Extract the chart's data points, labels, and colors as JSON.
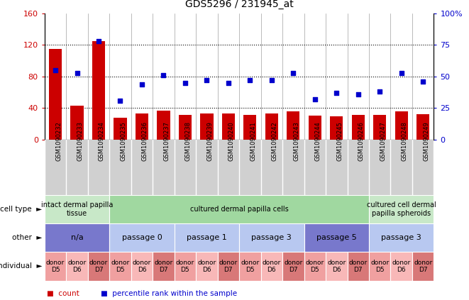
{
  "title": "GDS5296 / 231945_at",
  "samples": [
    "GSM1090232",
    "GSM1090233",
    "GSM1090234",
    "GSM1090235",
    "GSM1090236",
    "GSM1090237",
    "GSM1090238",
    "GSM1090239",
    "GSM1090240",
    "GSM1090241",
    "GSM1090242",
    "GSM1090243",
    "GSM1090244",
    "GSM1090245",
    "GSM1090246",
    "GSM1090247",
    "GSM1090248",
    "GSM1090249"
  ],
  "count_values": [
    115,
    43,
    125,
    28,
    33,
    37,
    31,
    33,
    33,
    31,
    33,
    36,
    30,
    29,
    31,
    31,
    36,
    32
  ],
  "percentile_values": [
    55,
    53,
    78,
    31,
    44,
    51,
    45,
    47,
    45,
    47,
    47,
    53,
    32,
    37,
    36,
    38,
    53,
    46
  ],
  "count_color": "#cc0000",
  "percentile_color": "#0000cc",
  "ylim_left": [
    0,
    160
  ],
  "ylim_right": [
    0,
    100
  ],
  "yticks_left": [
    0,
    40,
    80,
    120,
    160
  ],
  "yticks_right": [
    0,
    25,
    50,
    75,
    100
  ],
  "ytick_labels_left": [
    "0",
    "40",
    "80",
    "120",
    "160"
  ],
  "ytick_labels_right": [
    "0",
    "25",
    "50",
    "75",
    "100%"
  ],
  "cell_type_groups": [
    {
      "label": "intact dermal papilla\ntissue",
      "start": 0,
      "end": 3,
      "color": "#c8e8c8"
    },
    {
      "label": "cultured dermal papilla cells",
      "start": 3,
      "end": 15,
      "color": "#a0d8a0"
    },
    {
      "label": "cultured cell dermal\npapilla spheroids",
      "start": 15,
      "end": 18,
      "color": "#c8e8c8"
    }
  ],
  "other_groups": [
    {
      "label": "n/a",
      "start": 0,
      "end": 3,
      "color": "#7878cc"
    },
    {
      "label": "passage 0",
      "start": 3,
      "end": 6,
      "color": "#b8c8f0"
    },
    {
      "label": "passage 1",
      "start": 6,
      "end": 9,
      "color": "#b8c8f0"
    },
    {
      "label": "passage 3",
      "start": 9,
      "end": 12,
      "color": "#b8c8f0"
    },
    {
      "label": "passage 5",
      "start": 12,
      "end": 15,
      "color": "#7878cc"
    },
    {
      "label": "passage 3",
      "start": 15,
      "end": 18,
      "color": "#b8c8f0"
    }
  ],
  "individual_groups": [
    {
      "label": "donor\nD5",
      "start": 0,
      "end": 1,
      "color": "#f0a0a0"
    },
    {
      "label": "donor\nD6",
      "start": 1,
      "end": 2,
      "color": "#f8b8b8"
    },
    {
      "label": "donor\nD7",
      "start": 2,
      "end": 3,
      "color": "#d87878"
    },
    {
      "label": "donor\nD5",
      "start": 3,
      "end": 4,
      "color": "#f0a0a0"
    },
    {
      "label": "donor\nD6",
      "start": 4,
      "end": 5,
      "color": "#f8b8b8"
    },
    {
      "label": "donor\nD7",
      "start": 5,
      "end": 6,
      "color": "#d87878"
    },
    {
      "label": "donor\nD5",
      "start": 6,
      "end": 7,
      "color": "#f0a0a0"
    },
    {
      "label": "donor\nD6",
      "start": 7,
      "end": 8,
      "color": "#f8b8b8"
    },
    {
      "label": "donor\nD7",
      "start": 8,
      "end": 9,
      "color": "#d87878"
    },
    {
      "label": "donor\nD5",
      "start": 9,
      "end": 10,
      "color": "#f0a0a0"
    },
    {
      "label": "donor\nD6",
      "start": 10,
      "end": 11,
      "color": "#f8b8b8"
    },
    {
      "label": "donor\nD7",
      "start": 11,
      "end": 12,
      "color": "#d87878"
    },
    {
      "label": "donor\nD5",
      "start": 12,
      "end": 13,
      "color": "#f0a0a0"
    },
    {
      "label": "donor\nD6",
      "start": 13,
      "end": 14,
      "color": "#f8b8b8"
    },
    {
      "label": "donor\nD7",
      "start": 14,
      "end": 15,
      "color": "#d87878"
    },
    {
      "label": "donor\nD5",
      "start": 15,
      "end": 16,
      "color": "#f0a0a0"
    },
    {
      "label": "donor\nD6",
      "start": 16,
      "end": 17,
      "color": "#f8b8b8"
    },
    {
      "label": "donor\nD7",
      "start": 17,
      "end": 18,
      "color": "#d87878"
    }
  ],
  "row_labels": [
    "cell type",
    "other",
    "individual"
  ],
  "legend_count": "count",
  "legend_percentile": "percentile rank within the sample",
  "bg_color": "#ffffff",
  "xtick_bg": "#d0d0d0"
}
